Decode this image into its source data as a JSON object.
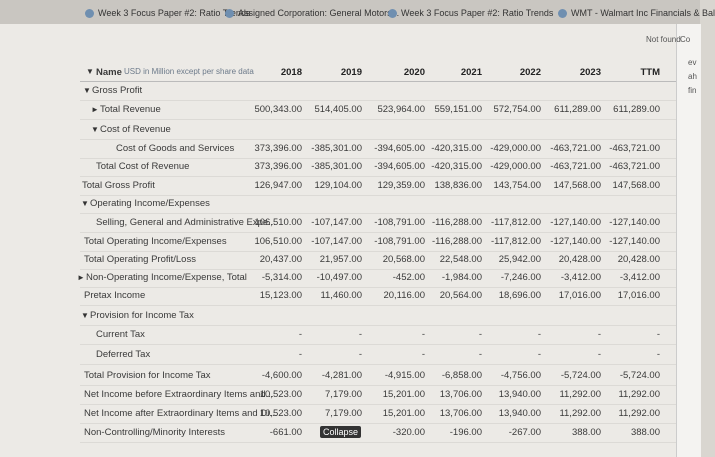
{
  "tabs": [
    "Week 3 Focus Paper #2: Ratio Trends",
    "Assigned Corporation: General Motors...",
    "Week 3 Focus Paper #2: Ratio Trends",
    "WMT - Walmart Inc Financials & Bal"
  ],
  "side_texts": [
    "Not found",
    "Co",
    "ev",
    "ah",
    "fin"
  ],
  "table": {
    "name_header": "Name",
    "unit_note": "USD in Million except per share data",
    "columns": [
      "2018",
      "2019",
      "2020",
      "2021",
      "2022",
      "2023",
      "TTM"
    ],
    "rows": [
      {
        "label": "Gross Profit"
      },
      {
        "label": "Total Revenue",
        "cells": [
          "500,343.00",
          "514,405.00",
          "523,964.00",
          "559,151.00",
          "572,754.00",
          "611,289.00",
          "611,289.00"
        ]
      },
      {
        "label": "Cost of Revenue"
      },
      {
        "label": "Cost of Goods and Services",
        "cells": [
          "373,396.00",
          "-385,301.00",
          "-394,605.00",
          "-420,315.00",
          "-429,000.00",
          "-463,721.00",
          "-463,721.00"
        ]
      },
      {
        "label": "Total Cost of Revenue",
        "cells": [
          "373,396.00",
          "-385,301.00",
          "-394,605.00",
          "-420,315.00",
          "-429,000.00",
          "-463,721.00",
          "-463,721.00"
        ]
      },
      {
        "label": "Total Gross Profit",
        "cells": [
          "126,947.00",
          "129,104.00",
          "129,359.00",
          "138,836.00",
          "143,754.00",
          "147,568.00",
          "147,568.00"
        ]
      },
      {
        "label": "Operating Income/Expenses"
      },
      {
        "label": "Selling, General and Administrative Expe...",
        "cells": [
          "106,510.00",
          "-107,147.00",
          "-108,791.00",
          "-116,288.00",
          "-117,812.00",
          "-127,140.00",
          "-127,140.00"
        ]
      },
      {
        "label": "Total Operating Income/Expenses",
        "cells": [
          "106,510.00",
          "-107,147.00",
          "-108,791.00",
          "-116,288.00",
          "-117,812.00",
          "-127,140.00",
          "-127,140.00"
        ]
      },
      {
        "label": "Total Operating Profit/Loss",
        "cells": [
          "20,437.00",
          "21,957.00",
          "20,568.00",
          "22,548.00",
          "25,942.00",
          "20,428.00",
          "20,428.00"
        ]
      },
      {
        "label": "Non-Operating Income/Expense, Total",
        "cells": [
          "-5,314.00",
          "-10,497.00",
          "-452.00",
          "-1,984.00",
          "-7,246.00",
          "-3,412.00",
          "-3,412.00"
        ]
      },
      {
        "label": "Pretax Income",
        "cells": [
          "15,123.00",
          "11,460.00",
          "20,116.00",
          "20,564.00",
          "18,696.00",
          "17,016.00",
          "17,016.00"
        ]
      },
      {
        "label": "Provision for Income Tax"
      },
      {
        "label": "Current Tax",
        "cells": [
          "-",
          "-",
          "-",
          "-",
          "-",
          "-",
          "-"
        ]
      },
      {
        "label": "Deferred Tax",
        "cells": [
          "-",
          "-",
          "-",
          "-",
          "-",
          "-",
          "-"
        ]
      },
      {
        "label": "Total Provision for Income Tax",
        "cells": [
          "-4,600.00",
          "-4,281.00",
          "-4,915.00",
          "-6,858.00",
          "-4,756.00",
          "-5,724.00",
          "-5,724.00"
        ]
      },
      {
        "label": "Net Income before Extraordinary Items and...",
        "cells": [
          "10,523.00",
          "7,179.00",
          "15,201.00",
          "13,706.00",
          "13,940.00",
          "11,292.00",
          "11,292.00"
        ]
      },
      {
        "label": "Net Income after Extraordinary Items and Di...",
        "cells": [
          "10,523.00",
          "7,179.00",
          "15,201.00",
          "13,706.00",
          "13,940.00",
          "11,292.00",
          "11,292.00"
        ]
      },
      {
        "label": "Non-Controlling/Minority Interests",
        "cells": [
          "-661.00",
          null,
          "-320.00",
          "-196.00",
          "-267.00",
          "388.00",
          "388.00"
        ]
      }
    ],
    "tooltip": "Collapse"
  }
}
